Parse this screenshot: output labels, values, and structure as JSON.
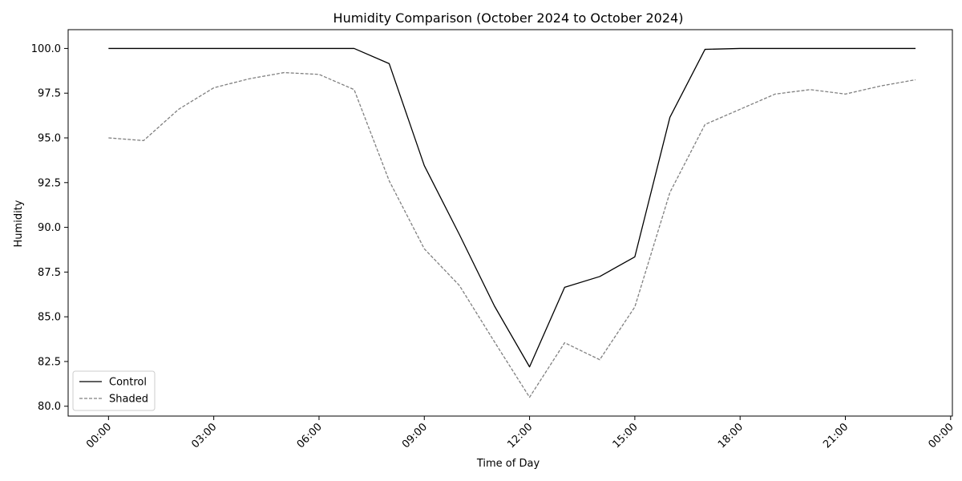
{
  "chart_data": {
    "type": "line",
    "title": "Humidity Comparison (October 2024 to October 2024)",
    "xlabel": "Time of Day",
    "ylabel": "Humidity",
    "x_unit": "hours",
    "x": [
      0,
      1,
      2,
      3,
      4,
      5,
      6,
      7,
      8,
      9,
      10,
      11,
      12,
      13,
      14,
      15,
      16,
      17,
      18,
      19,
      20,
      21,
      22,
      23
    ],
    "xlim": [
      -1.15,
      24.05
    ],
    "ylim": [
      79.45,
      101.05
    ],
    "xticks": [
      {
        "value": 0,
        "label": "00:00"
      },
      {
        "value": 3,
        "label": "03:00"
      },
      {
        "value": 6,
        "label": "06:00"
      },
      {
        "value": 9,
        "label": "09:00"
      },
      {
        "value": 12,
        "label": "12:00"
      },
      {
        "value": 15,
        "label": "15:00"
      },
      {
        "value": 18,
        "label": "18:00"
      },
      {
        "value": 21,
        "label": "21:00"
      },
      {
        "value": 24,
        "label": "00:00"
      }
    ],
    "yticks": [
      {
        "value": 80.0,
        "label": "80.0"
      },
      {
        "value": 82.5,
        "label": "82.5"
      },
      {
        "value": 85.0,
        "label": "85.0"
      },
      {
        "value": 87.5,
        "label": "87.5"
      },
      {
        "value": 90.0,
        "label": "90.0"
      },
      {
        "value": 92.5,
        "label": "92.5"
      },
      {
        "value": 95.0,
        "label": "95.0"
      },
      {
        "value": 97.5,
        "label": "97.5"
      },
      {
        "value": 100.0,
        "label": "100.0"
      }
    ],
    "grid": false,
    "legend_position": "lower-left",
    "series": [
      {
        "name": "Control",
        "color": "#000000",
        "line_style": "solid",
        "values": [
          100.0,
          100.0,
          100.0,
          100.0,
          100.0,
          100.0,
          100.0,
          100.0,
          99.15,
          93.45,
          89.6,
          85.6,
          82.2,
          86.65,
          87.25,
          88.35,
          96.15,
          99.95,
          100.0,
          100.0,
          100.0,
          100.0,
          100.0,
          100.0
        ]
      },
      {
        "name": "Shaded",
        "color": "#808080",
        "line_style": "dashed",
        "values": [
          95.0,
          94.85,
          96.6,
          97.8,
          98.3,
          98.65,
          98.55,
          97.7,
          92.6,
          88.8,
          86.75,
          83.6,
          80.5,
          83.55,
          82.6,
          85.55,
          91.95,
          95.75,
          96.6,
          97.45,
          97.7,
          97.45,
          97.9,
          98.25
        ]
      }
    ]
  }
}
